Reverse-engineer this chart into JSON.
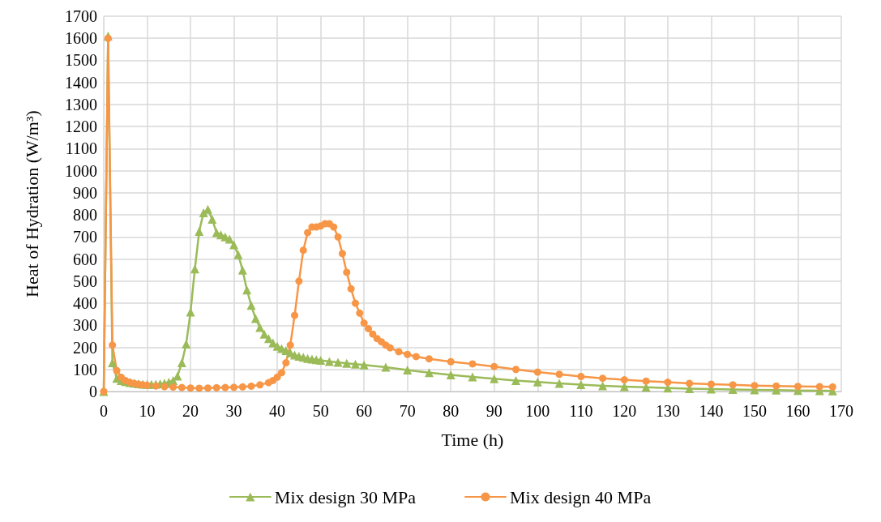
{
  "chart_data": {
    "type": "line",
    "xlabel": "Time (h)",
    "ylabel": "Heat of Hydration (W/m³)",
    "xlim": [
      0,
      170
    ],
    "xticks": [
      0,
      10,
      20,
      30,
      40,
      50,
      60,
      70,
      80,
      90,
      100,
      110,
      120,
      130,
      140,
      150,
      160,
      170
    ],
    "ylim": [
      0,
      1700
    ],
    "yticks": [
      0,
      100,
      200,
      300,
      400,
      500,
      600,
      700,
      800,
      900,
      1000,
      1100,
      1200,
      1300,
      1400,
      1500,
      1600,
      1700
    ],
    "grid": true,
    "legend": "bottom",
    "line_style": "solid",
    "series": [
      {
        "name": "Mix design 30 MPa",
        "color": "#9bbb59",
        "marker": "triangle",
        "x": [
          0,
          1,
          2,
          3,
          4,
          5,
          6,
          7,
          8,
          9,
          10,
          11,
          12,
          13,
          14,
          15,
          16,
          17,
          18,
          19,
          20,
          21,
          22,
          23,
          24,
          25,
          26,
          27,
          28,
          29,
          30,
          31,
          32,
          33,
          34,
          35,
          36,
          37,
          38,
          39,
          40,
          41,
          42,
          43,
          44,
          45,
          46,
          47,
          48,
          49,
          50,
          52,
          54,
          56,
          58,
          60,
          65,
          70,
          75,
          80,
          85,
          90,
          95,
          100,
          105,
          110,
          115,
          120,
          125,
          130,
          135,
          140,
          145,
          150,
          155,
          160,
          165,
          168
        ],
        "values": [
          0,
          1610,
          130,
          60,
          50,
          45,
          40,
          38,
          35,
          33,
          32,
          32,
          33,
          35,
          38,
          42,
          50,
          70,
          130,
          215,
          360,
          555,
          725,
          810,
          825,
          780,
          720,
          710,
          700,
          690,
          665,
          620,
          550,
          460,
          390,
          330,
          290,
          260,
          240,
          220,
          205,
          195,
          185,
          175,
          165,
          160,
          155,
          150,
          147,
          144,
          141,
          136,
          132,
          128,
          124,
          120,
          110,
          97,
          85,
          75,
          66,
          58,
          50,
          43,
          37,
          31,
          26,
          22,
          19,
          16,
          13,
          11,
          9,
          7,
          6,
          5,
          4,
          3
        ]
      },
      {
        "name": "Mix design 40 MPa",
        "color": "#f79646",
        "marker": "circle",
        "x": [
          0,
          1,
          2,
          3,
          4,
          5,
          6,
          7,
          8,
          9,
          10,
          12,
          14,
          16,
          18,
          20,
          22,
          24,
          26,
          28,
          30,
          32,
          34,
          36,
          38,
          39,
          40,
          41,
          42,
          43,
          44,
          45,
          46,
          47,
          48,
          49,
          50,
          51,
          52,
          53,
          54,
          55,
          56,
          57,
          58,
          59,
          60,
          61,
          62,
          63,
          64,
          65,
          66,
          68,
          70,
          72,
          75,
          80,
          85,
          90,
          95,
          100,
          105,
          110,
          115,
          120,
          125,
          130,
          135,
          140,
          145,
          150,
          155,
          160,
          165,
          168
        ],
        "values": [
          0,
          1600,
          210,
          95,
          65,
          50,
          42,
          37,
          33,
          30,
          28,
          25,
          22,
          20,
          18,
          16,
          15,
          16,
          17,
          18,
          19,
          21,
          24,
          30,
          40,
          50,
          65,
          85,
          130,
          210,
          345,
          500,
          640,
          720,
          745,
          745,
          750,
          760,
          760,
          745,
          700,
          625,
          540,
          465,
          400,
          355,
          310,
          285,
          260,
          240,
          225,
          210,
          198,
          180,
          168,
          158,
          148,
          135,
          125,
          113,
          100,
          88,
          78,
          68,
          60,
          53,
          47,
          42,
          37,
          33,
          30,
          27,
          25,
          23,
          22,
          21
        ]
      }
    ]
  }
}
